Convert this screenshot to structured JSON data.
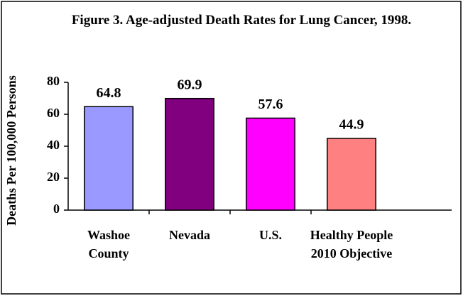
{
  "chart_data": {
    "type": "bar",
    "title": "Figure 3.  Age-adjusted Death Rates for Lung Cancer, 1998.",
    "y_label": "Deaths Per 100,000 Persons",
    "categories": [
      "Washoe County",
      "Nevada",
      "U.S.",
      "Healthy People 2010 Objective"
    ],
    "values": [
      64.8,
      69.9,
      57.6,
      44.9
    ],
    "colors": [
      "#9999ff",
      "#800080",
      "#ff00ff",
      "#ff8080"
    ],
    "ylim": [
      0,
      80
    ],
    "yticks": [
      0,
      20,
      40,
      60,
      80
    ],
    "grid": false
  }
}
